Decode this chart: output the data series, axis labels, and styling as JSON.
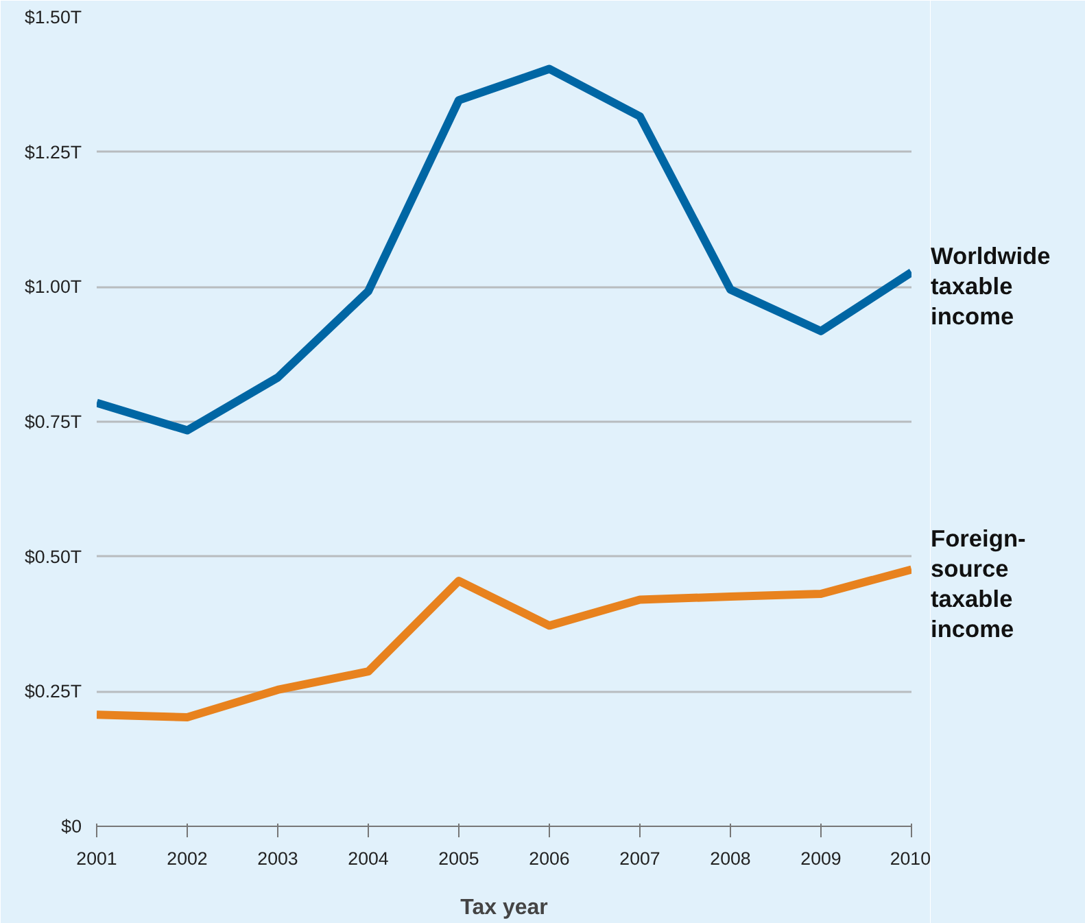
{
  "chart_data": {
    "type": "line",
    "xlabel": "Tax year",
    "x": [
      2001,
      2002,
      2003,
      2004,
      2005,
      2006,
      2007,
      2008,
      2009,
      2010
    ],
    "series": [
      {
        "name": "Worldwide taxable income",
        "color": "#0066a4",
        "values": [
          0.785,
          0.734,
          0.832,
          0.992,
          1.346,
          1.404,
          1.316,
          0.995,
          0.918,
          1.027
        ]
      },
      {
        "name": "Foreign-source taxable income",
        "color": "#e8821e",
        "values": [
          0.207,
          0.202,
          0.253,
          0.287,
          0.455,
          0.372,
          0.42,
          0.426,
          0.431,
          0.476
        ]
      }
    ],
    "xlim": [
      2001,
      2010
    ],
    "xticks": [
      2001,
      2002,
      2003,
      2004,
      2005,
      2006,
      2007,
      2008,
      2009,
      2010
    ],
    "ylim": [
      0,
      1.5
    ],
    "yticks": [
      {
        "value": 0,
        "label": "$0"
      },
      {
        "value": 0.25,
        "label": "$0.25T"
      },
      {
        "value": 0.5,
        "label": "$0.50T"
      },
      {
        "value": 0.75,
        "label": "$0.75T"
      },
      {
        "value": 1.0,
        "label": "$1.00T"
      },
      {
        "value": 1.25,
        "label": "$1.25T"
      },
      {
        "value": 1.5,
        "label": "$1.50T"
      }
    ],
    "grid": "y",
    "legend": false,
    "marker": "none",
    "line_style": "solid"
  }
}
